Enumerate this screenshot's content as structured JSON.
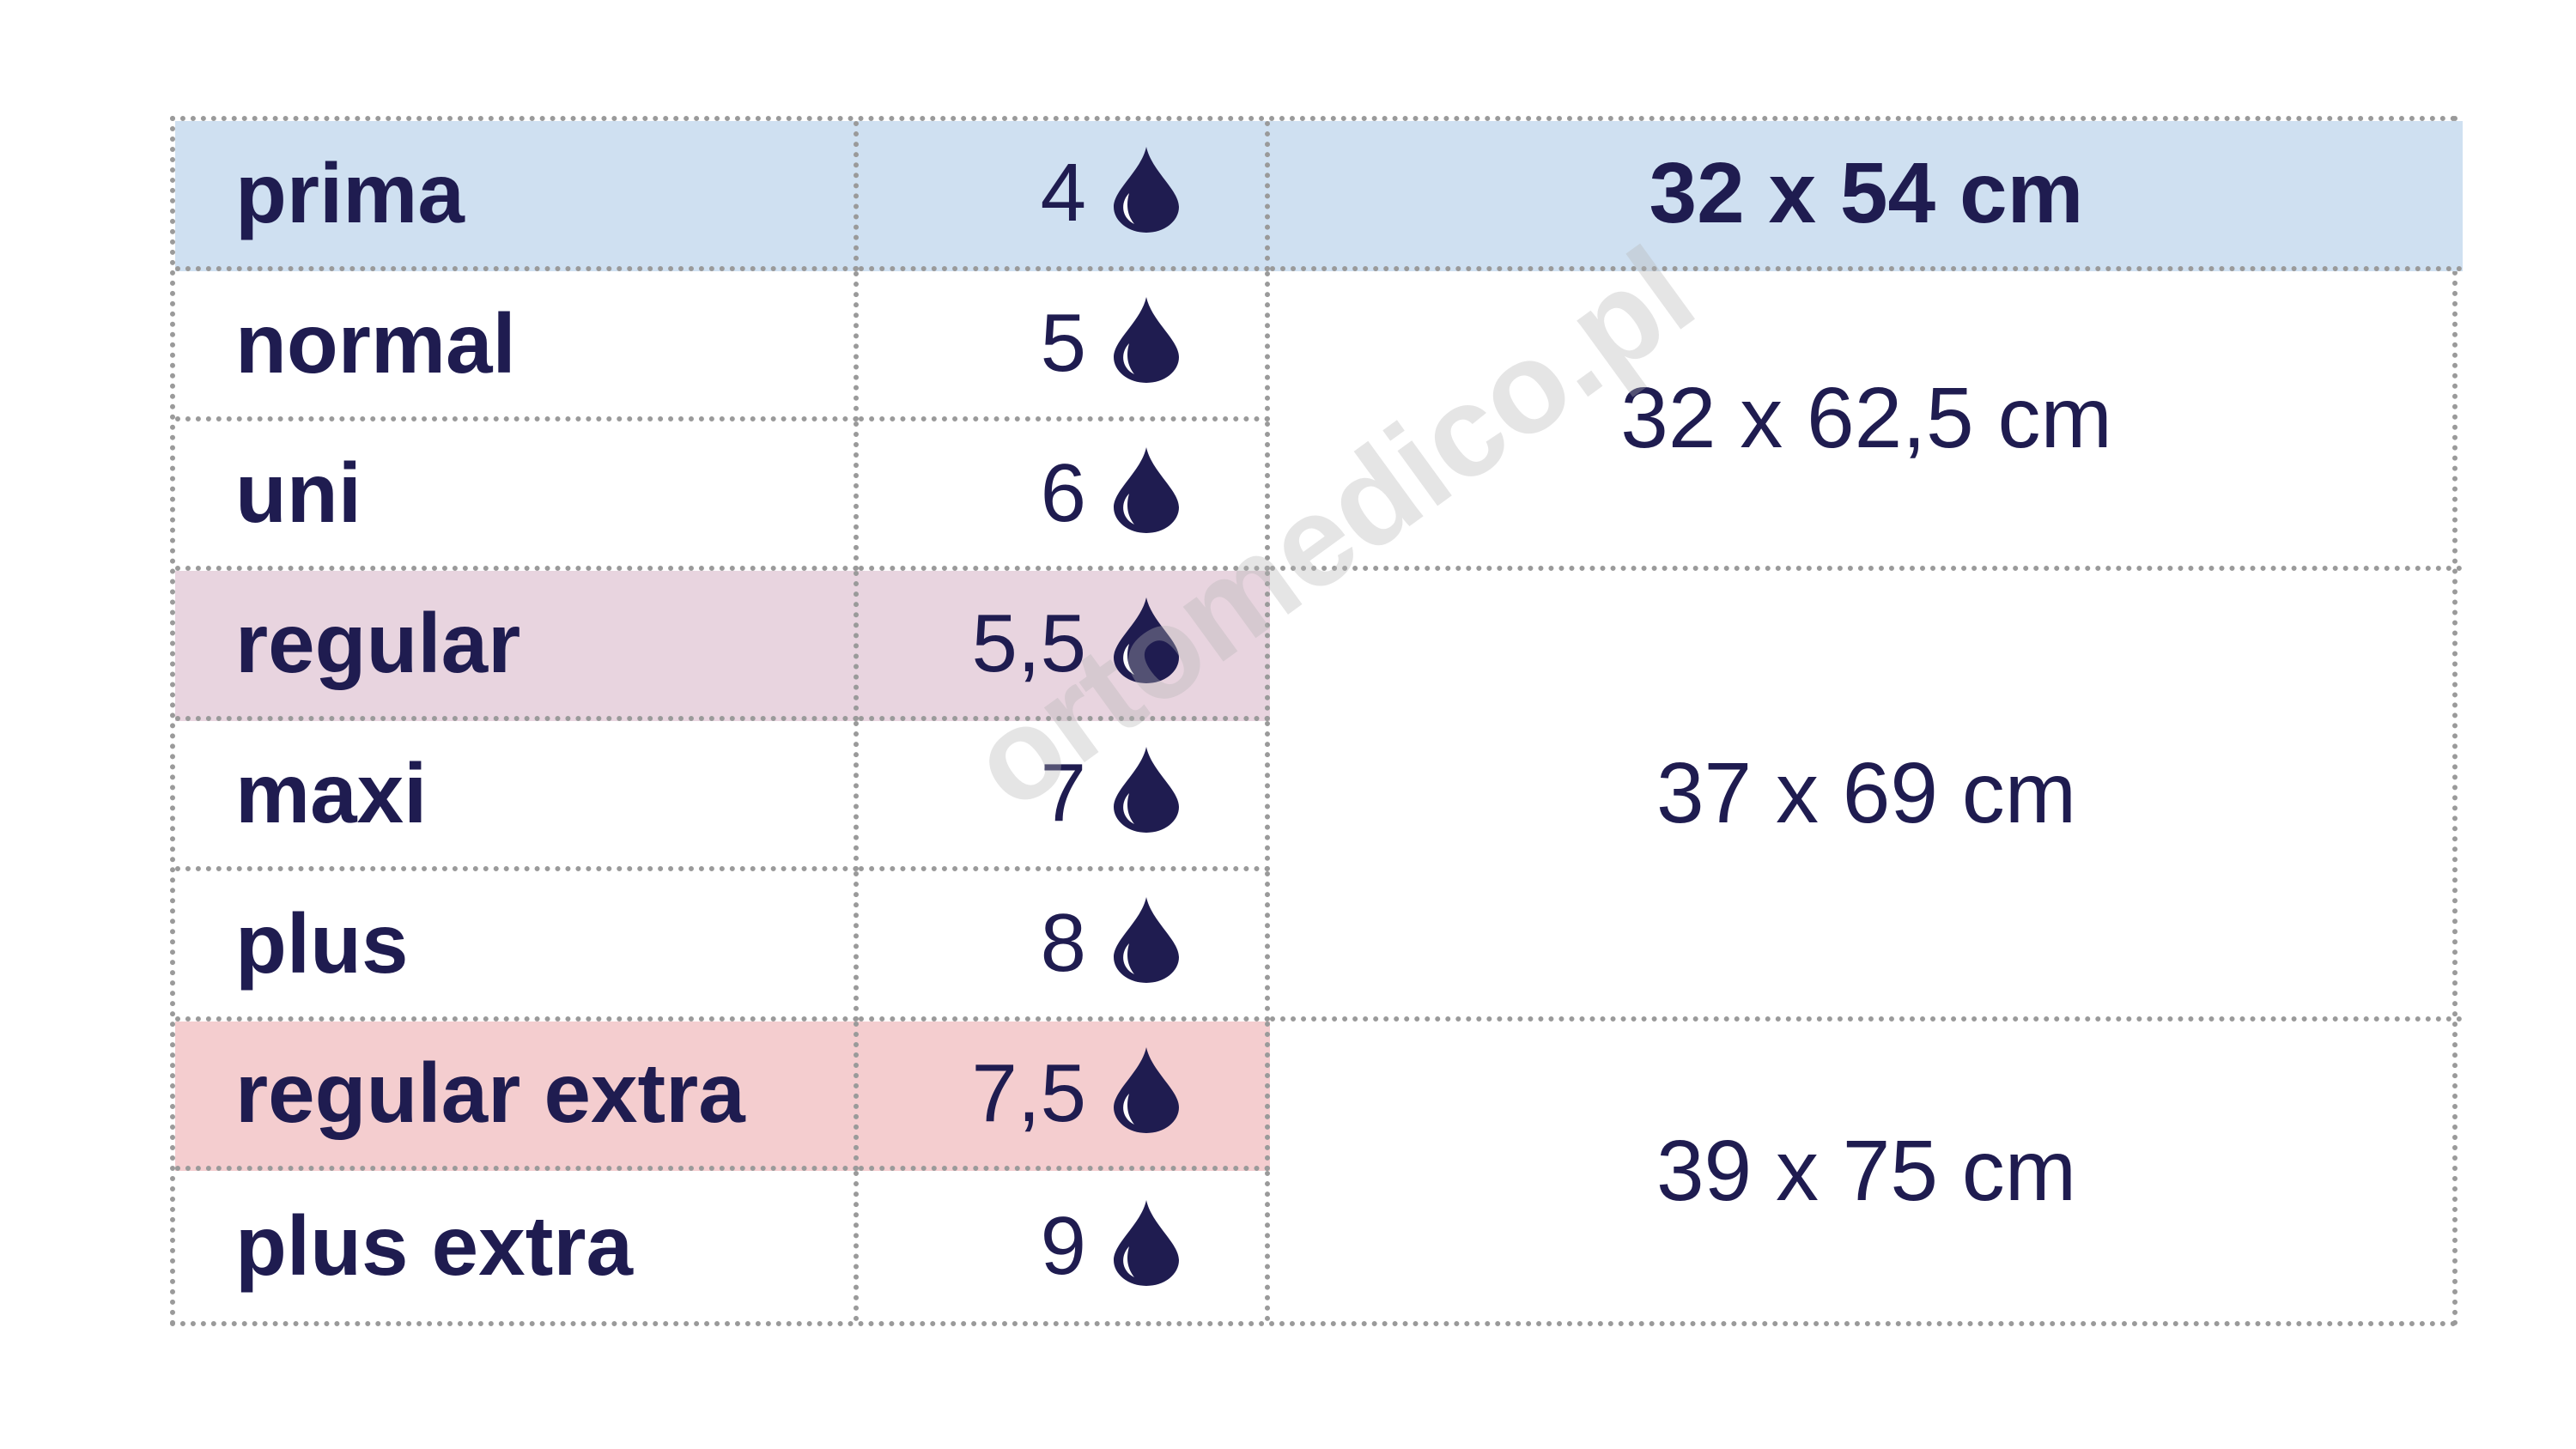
{
  "colors": {
    "text": "#1f1c50",
    "prima_row": "#cfe0f1",
    "regular_row": "#e8d4df",
    "regular_extra_row": "#f4cdcf",
    "border": "#9a9a9a"
  },
  "rows": [
    {
      "name": "prima",
      "absorbency": "4",
      "icon": "drop-icon"
    },
    {
      "name": "normal",
      "absorbency": "5",
      "icon": "drop-icon"
    },
    {
      "name": "uni",
      "absorbency": "6",
      "icon": "drop-icon"
    },
    {
      "name": "regular",
      "absorbency": "5,5",
      "icon": "drop-icon"
    },
    {
      "name": "maxi",
      "absorbency": "7",
      "icon": "drop-icon"
    },
    {
      "name": "plus",
      "absorbency": "8",
      "icon": "drop-icon"
    },
    {
      "name": "regular extra",
      "absorbency": "7,5",
      "icon": "drop-icon"
    },
    {
      "name": "plus extra",
      "absorbency": "9",
      "icon": "drop-icon"
    }
  ],
  "sizes": [
    "32 x 54 cm",
    "32 x 62,5 cm",
    "37 x 69 cm",
    "39 x 75 cm"
  ],
  "watermark": "ortomedico.pl"
}
